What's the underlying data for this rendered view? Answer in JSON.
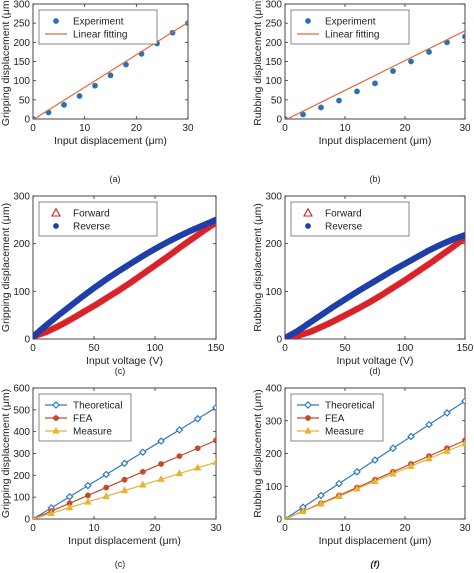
{
  "chart_data": [
    {
      "panel": "(a)",
      "caption_bold": false,
      "type": "scatter",
      "xlabel": "Input displacement (μm)",
      "ylabel": "Gripping displacement (μm)",
      "xlim": [
        0,
        30
      ],
      "ylim": [
        0,
        300
      ],
      "xticks": [
        0,
        10,
        20,
        30
      ],
      "yticks": [
        0,
        50,
        100,
        150,
        200,
        250,
        300
      ],
      "legend": "top-left",
      "grid": false,
      "series": [
        {
          "name": "Experiment",
          "style": "points",
          "marker": "dot",
          "color": "#2e6fb3",
          "x": [
            0,
            3,
            6,
            9,
            12,
            15,
            18,
            21,
            24,
            27,
            30
          ],
          "y": [
            0,
            17,
            37,
            60,
            87,
            114,
            142,
            170,
            197,
            225,
            250
          ]
        },
        {
          "name": "Linear fitting",
          "style": "line",
          "color": "#e06a3a",
          "x": [
            0,
            30
          ],
          "y": [
            -2,
            252
          ]
        }
      ]
    },
    {
      "panel": "(b)",
      "caption_bold": false,
      "type": "scatter",
      "xlabel": "Input displacement (μm)",
      "ylabel": "Rubbing displacement (μm)",
      "xlim": [
        0,
        30
      ],
      "ylim": [
        0,
        300
      ],
      "xticks": [
        0,
        10,
        20,
        30
      ],
      "yticks": [
        0,
        50,
        100,
        150,
        200,
        250,
        300
      ],
      "legend": "top-left",
      "grid": false,
      "series": [
        {
          "name": "Experiment",
          "style": "points",
          "marker": "dot",
          "color": "#2e6fb3",
          "x": [
            0,
            3,
            6,
            9,
            12,
            15,
            18,
            21,
            24,
            27,
            30
          ],
          "y": [
            0,
            12,
            30,
            48,
            72,
            93,
            125,
            150,
            175,
            200,
            215
          ]
        },
        {
          "name": "Linear fitting",
          "style": "line",
          "color": "#e06a3a",
          "x": [
            0,
            30
          ],
          "y": [
            -3,
            230
          ]
        }
      ]
    },
    {
      "panel": "(c)",
      "caption_bold": false,
      "type": "line",
      "xlabel": "Input voltage (V)",
      "ylabel": "Gripping displacement (μm)",
      "xlim": [
        0,
        150
      ],
      "ylim": [
        0,
        300
      ],
      "xticks": [
        0,
        50,
        100,
        150
      ],
      "yticks": [
        0,
        100,
        200,
        300
      ],
      "legend": "top-left",
      "grid": false,
      "series": [
        {
          "name": "Forward",
          "style": "dense",
          "marker": "triangle",
          "color": "#d9232a",
          "x": [
            0,
            10,
            20,
            30,
            40,
            50,
            60,
            70,
            80,
            90,
            100,
            110,
            120,
            130,
            140,
            150
          ],
          "y": [
            5,
            14,
            26,
            40,
            55,
            70,
            86,
            102,
            119,
            137,
            155,
            173,
            192,
            210,
            228,
            245
          ]
        },
        {
          "name": "Reverse",
          "style": "dense",
          "marker": "dot",
          "color": "#1f3fa8",
          "x": [
            0,
            10,
            20,
            30,
            40,
            50,
            60,
            70,
            80,
            90,
            100,
            110,
            120,
            130,
            140,
            150
          ],
          "y": [
            5,
            27,
            48,
            68,
            88,
            107,
            125,
            142,
            158,
            174,
            189,
            203,
            216,
            228,
            239,
            250
          ]
        }
      ]
    },
    {
      "panel": "(d)",
      "caption_bold": false,
      "type": "line",
      "xlabel": "Input voltage (V)",
      "ylabel": "Rubbing displacement (μm)",
      "xlim": [
        0,
        150
      ],
      "ylim": [
        0,
        300
      ],
      "xticks": [
        0,
        50,
        100,
        150
      ],
      "yticks": [
        0,
        100,
        200,
        300
      ],
      "legend": "top-left",
      "grid": false,
      "series": [
        {
          "name": "Forward",
          "style": "dense",
          "marker": "triangle",
          "color": "#d9232a",
          "x": [
            0,
            10,
            20,
            30,
            40,
            50,
            60,
            70,
            80,
            90,
            100,
            110,
            120,
            130,
            140,
            150
          ],
          "y": [
            2,
            6,
            14,
            25,
            37,
            50,
            63,
            77,
            92,
            108,
            124,
            141,
            158,
            176,
            194,
            213
          ]
        },
        {
          "name": "Reverse",
          "style": "dense",
          "marker": "dot",
          "color": "#1f3fa8",
          "x": [
            0,
            10,
            20,
            30,
            40,
            50,
            60,
            70,
            80,
            90,
            100,
            110,
            120,
            130,
            140,
            150
          ],
          "y": [
            2,
            16,
            33,
            50,
            67,
            83,
            99,
            114,
            129,
            144,
            158,
            172,
            186,
            198,
            209,
            218
          ]
        }
      ]
    },
    {
      "panel": "(c)",
      "caption_bold": false,
      "type": "line",
      "xlabel": "Input displacement (μm)",
      "ylabel": "Gripping displacement (μm)",
      "xlim": [
        0,
        30
      ],
      "ylim": [
        0,
        600
      ],
      "xticks": [
        0,
        10,
        20,
        30
      ],
      "yticks": [
        0,
        100,
        200,
        300,
        400,
        500,
        600
      ],
      "legend": "top-left",
      "grid": false,
      "series": [
        {
          "name": "Theoretical",
          "style": "linemarker",
          "marker": "diamond",
          "color": "#2e7bbd",
          "x": [
            0,
            3,
            6,
            9,
            12,
            15,
            18,
            21,
            24,
            27,
            30
          ],
          "y": [
            0,
            51,
            102,
            153,
            204,
            255,
            306,
            357,
            408,
            459,
            510
          ]
        },
        {
          "name": "FEA",
          "style": "linemarker",
          "marker": "dot",
          "color": "#c4482a",
          "x": [
            0,
            3,
            6,
            9,
            12,
            15,
            18,
            21,
            24,
            27,
            30
          ],
          "y": [
            0,
            36,
            72,
            108,
            144,
            180,
            216,
            252,
            288,
            324,
            360
          ]
        },
        {
          "name": "Measure",
          "style": "linemarker",
          "marker": "triangle",
          "color": "#e8b233",
          "x": [
            0,
            3,
            6,
            9,
            12,
            15,
            18,
            21,
            24,
            27,
            30
          ],
          "y": [
            0,
            26,
            52,
            78,
            104,
            130,
            156,
            182,
            208,
            234,
            260
          ]
        }
      ]
    },
    {
      "panel": "(f)",
      "caption_bold": true,
      "type": "line",
      "xlabel": "Input displacement (μm)",
      "ylabel": "Rubbing displacement (μm)",
      "xlim": [
        0,
        30
      ],
      "ylim": [
        0,
        400
      ],
      "xticks": [
        0,
        10,
        20,
        30
      ],
      "yticks": [
        0,
        100,
        200,
        300,
        400
      ],
      "legend": "top-left",
      "grid": false,
      "series": [
        {
          "name": "Theoretical",
          "style": "linemarker",
          "marker": "diamond",
          "color": "#2e7bbd",
          "x": [
            0,
            3,
            6,
            9,
            12,
            15,
            18,
            21,
            24,
            27,
            30
          ],
          "y": [
            0,
            36,
            72,
            108,
            144,
            180,
            216,
            252,
            288,
            324,
            360
          ]
        },
        {
          "name": "FEA",
          "style": "linemarker",
          "marker": "dot",
          "color": "#c4482a",
          "x": [
            0,
            3,
            6,
            9,
            12,
            15,
            18,
            21,
            24,
            27,
            30
          ],
          "y": [
            0,
            24,
            48,
            72,
            96,
            120,
            144,
            168,
            192,
            216,
            240
          ]
        },
        {
          "name": "Measure",
          "style": "linemarker",
          "marker": "triangle",
          "color": "#e8b233",
          "x": [
            0,
            3,
            6,
            9,
            12,
            15,
            18,
            21,
            24,
            27,
            30
          ],
          "y": [
            0,
            23,
            46,
            69,
            92,
            115,
            138,
            161,
            184,
            207,
            230
          ]
        }
      ]
    }
  ]
}
